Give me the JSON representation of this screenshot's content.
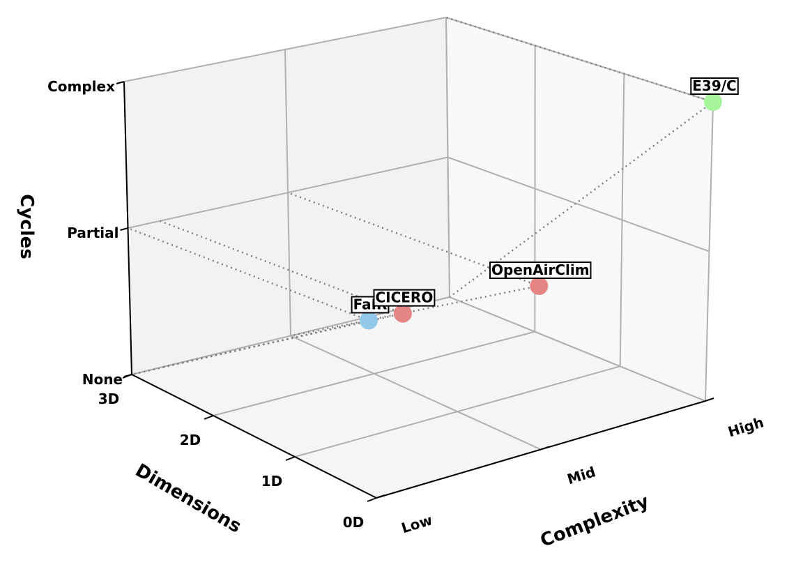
{
  "chart_data": {
    "type": "scatter3d",
    "x_axis": {
      "label": "Complexity",
      "ticks": [
        "Low",
        "Mid",
        "High"
      ],
      "range": [
        0,
        2
      ]
    },
    "y_axis": {
      "label": "Dimensions",
      "ticks": [
        "0D",
        "1D",
        "2D",
        "3D"
      ],
      "range": [
        0,
        3
      ]
    },
    "z_axis": {
      "label": "Cycles",
      "ticks": [
        "None",
        "Partial",
        "Complex"
      ],
      "range": [
        0,
        2
      ]
    },
    "grid": true,
    "points": [
      {
        "label": "FaIR",
        "complexity": 0,
        "dimensions": 0,
        "cycles": 1,
        "color": "#92c9e8"
      },
      {
        "label": "CICERO",
        "complexity": 0.2,
        "dimensions": 0,
        "cycles": 1,
        "color": "#e48484"
      },
      {
        "label": "OpenAirClim",
        "complexity": 1,
        "dimensions": 0,
        "cycles": 1,
        "color": "#e48484"
      },
      {
        "label": "E39/C",
        "complexity": 2,
        "dimensions": 0,
        "cycles": 2,
        "color": "#a6f59b"
      }
    ]
  }
}
